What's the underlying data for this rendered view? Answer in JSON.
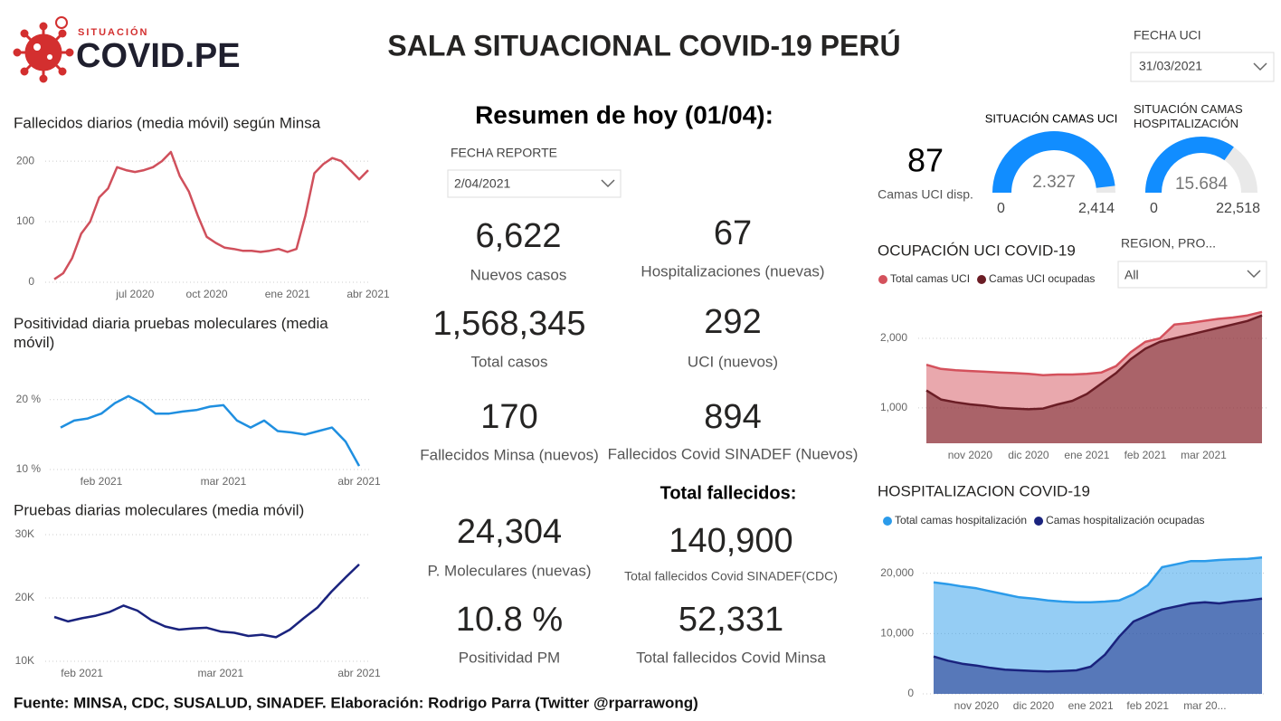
{
  "header": {
    "logo_small": "SITUACIÓN",
    "logo": "COVID.PE",
    "title": "SALA SITUACIONAL COVID-19 PERÚ"
  },
  "filters": [
    {
      "label": "FECHA UCI",
      "value": "31/03/2021"
    },
    {
      "label": "FECHA REPORTE",
      "value": "2/04/2021"
    },
    {
      "label": "REGION, PRO...",
      "value": "All"
    }
  ],
  "summary": {
    "title": "Resumen de hoy (01/04):",
    "kpis": [
      {
        "value": "6,622",
        "label": "Nuevos casos"
      },
      {
        "value": "67",
        "label": "Hospitalizaciones (nuevas)"
      },
      {
        "value": "1,568,345",
        "label": "Total casos"
      },
      {
        "value": "292",
        "label": "UCI (nuevos)"
      },
      {
        "value": "170",
        "label": "Fallecidos Minsa (nuevos)"
      },
      {
        "value": "894",
        "label": "Fallecidos Covid SINADEF (Nuevos)"
      },
      {
        "value": "24,304",
        "label": "P. Moleculares (nuevas)"
      },
      {
        "value": "140,900",
        "label": "Total fallecidos Covid SINADEF(CDC)"
      },
      {
        "value": "10.8 %",
        "label": "Positividad PM"
      },
      {
        "value": "52,331",
        "label": "Total fallecidos Covid Minsa"
      }
    ],
    "deaths_title": "Total fallecidos:"
  },
  "uci_available": {
    "value": "87",
    "label": "Camas UCI disp."
  },
  "footer": "Fuente: MINSA, CDC, SUSALUD, SINADEF. Elaboración: Rodrigo Parra (Twitter @rparrawong)",
  "chart_data": [
    {
      "type": "line",
      "title": "Fallecidos diarios (media móvil) según Minsa",
      "categories": [
        null,
        null,
        null,
        null,
        null,
        null,
        null,
        null,
        null,
        "jul 2020",
        null,
        null,
        null,
        null,
        null,
        null,
        null,
        "oct 2020",
        null,
        null,
        null,
        null,
        null,
        null,
        null,
        null,
        "ene 2021",
        null,
        null,
        null,
        null,
        null,
        null,
        null,
        null,
        "abr 2021"
      ],
      "values": [
        5,
        15,
        40,
        80,
        100,
        140,
        155,
        190,
        185,
        182,
        185,
        190,
        200,
        215,
        175,
        150,
        110,
        75,
        65,
        57,
        55,
        52,
        52,
        50,
        52,
        55,
        50,
        55,
        110,
        180,
        195,
        205,
        200,
        185,
        170,
        185
      ],
      "color": "#d0505c",
      "ylim": [
        0,
        230
      ],
      "yticks": [
        0,
        100,
        200
      ],
      "grid": true
    },
    {
      "type": "line",
      "title": "Positividad diaria pruebas moleculares (media móvil)",
      "categories": [
        null,
        null,
        null,
        "feb 2021",
        null,
        null,
        null,
        null,
        null,
        null,
        null,
        null,
        "mar 2021",
        null,
        null,
        null,
        null,
        null,
        null,
        null,
        null,
        null,
        "abr 2021"
      ],
      "values": [
        16,
        17,
        17.3,
        18,
        19.5,
        20.5,
        19.5,
        18,
        18,
        18.3,
        18.5,
        19,
        19.2,
        17,
        16,
        17,
        15.5,
        15.3,
        15,
        15.5,
        16,
        14,
        10.5
      ],
      "color": "#1f8fe0",
      "ylim": [
        10,
        21
      ],
      "yticks": [
        {
          "value": 10,
          "label": "10 %"
        },
        {
          "value": 20,
          "label": "20 %"
        }
      ],
      "grid": true
    },
    {
      "type": "line",
      "title": "Pruebas diarias moleculares (media móvil)",
      "categories": [
        null,
        null,
        "feb 2021",
        null,
        null,
        null,
        null,
        null,
        null,
        null,
        null,
        null,
        "mar 2021",
        null,
        null,
        null,
        null,
        null,
        null,
        null,
        null,
        null,
        "abr 2021"
      ],
      "values": [
        17000,
        16300,
        16800,
        17200,
        17800,
        18800,
        18000,
        16500,
        15500,
        15000,
        15200,
        15300,
        14700,
        14500,
        14000,
        14200,
        13800,
        15000,
        16800,
        18500,
        21000,
        23200,
        25300
      ],
      "color": "#1a237e",
      "ylim": [
        10000,
        30000
      ],
      "yticks": [
        {
          "value": 10000,
          "label": "10K"
        },
        {
          "value": 20000,
          "label": "20K"
        },
        {
          "value": 30000,
          "label": "30K"
        }
      ],
      "grid": true
    },
    {
      "type": "area",
      "title": "OCUPACIÓN UCI COVID-19",
      "categories": [
        null,
        null,
        null,
        "nov 2020",
        null,
        null,
        null,
        "dic 2020",
        null,
        null,
        null,
        "ene 2021",
        null,
        null,
        null,
        "feb 2021",
        null,
        null,
        null,
        "mar 2021",
        null,
        null,
        null,
        null
      ],
      "series": [
        {
          "name": "Total camas UCI",
          "color": "#d4515c",
          "values": [
            1620,
            1560,
            1540,
            1530,
            1520,
            1510,
            1500,
            1490,
            1470,
            1480,
            1480,
            1490,
            1510,
            1600,
            1800,
            1950,
            2000,
            2200,
            2220,
            2250,
            2280,
            2300,
            2330,
            2380
          ]
        },
        {
          "name": "Camas UCI ocupadas",
          "color": "#6b1d25",
          "values": [
            1250,
            1120,
            1080,
            1050,
            1030,
            1000,
            990,
            980,
            990,
            1050,
            1100,
            1200,
            1350,
            1500,
            1700,
            1850,
            1950,
            2000,
            2050,
            2100,
            2150,
            2200,
            2250,
            2330
          ]
        }
      ],
      "ylim": [
        490,
        2560
      ],
      "yticks": [
        {
          "value": 1000,
          "label": "1,000"
        },
        {
          "value": 2000,
          "label": "2,000"
        }
      ],
      "grid": true,
      "legend": "top-left"
    },
    {
      "type": "area",
      "title": "HOSPITALIZACION COVID-19",
      "categories": [
        null,
        null,
        null,
        "nov 2020",
        null,
        null,
        null,
        "dic 2020",
        null,
        null,
        null,
        "ene 2021",
        null,
        null,
        null,
        "feb 2021",
        null,
        null,
        null,
        "mar 20...",
        null,
        null,
        null,
        null
      ],
      "series": [
        {
          "name": "Total camas hospitalización",
          "color": "#2b9bea",
          "values": [
            18500,
            18200,
            17800,
            17500,
            17000,
            16500,
            16000,
            15800,
            15500,
            15300,
            15200,
            15200,
            15300,
            15500,
            16500,
            18000,
            21000,
            21500,
            22000,
            22000,
            22200,
            22300,
            22400,
            22600
          ]
        },
        {
          "name": "Camas hospitalización ocupadas",
          "color": "#1a237e",
          "values": [
            6200,
            5500,
            5000,
            4700,
            4300,
            4000,
            3900,
            3800,
            3700,
            3800,
            3900,
            4500,
            6500,
            9500,
            12000,
            13000,
            14000,
            14500,
            15000,
            15200,
            15000,
            15300,
            15500,
            15800
          ]
        }
      ],
      "ylim": [
        0,
        24000
      ],
      "yticks": [
        0,
        {
          "value": 10000,
          "label": "10,000"
        },
        {
          "value": 20000,
          "label": "20,000"
        }
      ],
      "grid": true,
      "legend": "top-left"
    },
    {
      "type": "gauge",
      "title": "SITUACIÓN CAMAS UCI",
      "values": [
        2327
      ],
      "value_labels": [
        "2.327"
      ],
      "ylim": [
        0,
        2414
      ],
      "yticks": [
        0,
        {
          "value": 2414,
          "label": "2,414"
        }
      ],
      "color": "#118dff"
    },
    {
      "type": "gauge",
      "title": "SITUACIÓN CAMAS HOSPITALIZACIÓN",
      "values": [
        15684
      ],
      "value_labels": [
        "15.684"
      ],
      "ylim": [
        0,
        22518
      ],
      "yticks": [
        0,
        {
          "value": 22518,
          "label": "22,518"
        }
      ],
      "color": "#118dff"
    }
  ]
}
